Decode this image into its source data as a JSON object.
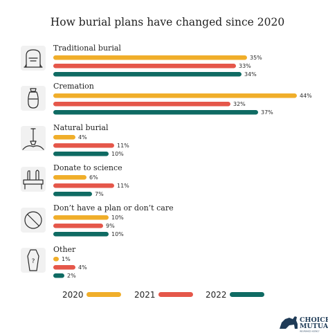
{
  "chart_data": {
    "type": "bar",
    "orientation": "horizontal",
    "title": "How burial plans have changed since 2020",
    "categories": [
      "Traditional burial",
      "Cremation",
      "Natural burial",
      "Donate to science",
      "Don’t have a plan or don’t care",
      "Other"
    ],
    "category_icons": [
      "gravestone-icon",
      "urn-icon",
      "shovel-icon",
      "donate-to-science-icon",
      "no-plan-icon",
      "coffin-icon"
    ],
    "series": [
      {
        "name": "2020",
        "color": "#f0ae2a",
        "values": [
          35,
          44,
          4,
          6,
          10,
          1
        ],
        "labels": [
          "35%",
          "44%",
          "4%",
          "6%",
          "10%",
          "1%"
        ]
      },
      {
        "name": "2021",
        "color": "#e5574a",
        "values": [
          33,
          32,
          11,
          11,
          9,
          4
        ],
        "labels": [
          "33%",
          "32%",
          "11%",
          "11%",
          "9%",
          "4%"
        ]
      },
      {
        "name": "2022",
        "color": "#0f6b63",
        "values": [
          34,
          37,
          10,
          7,
          10,
          2
        ],
        "labels": [
          "34%",
          "37%",
          "10%",
          "7%",
          "10%",
          "2%"
        ]
      }
    ],
    "xlim": [
      0,
      44
    ],
    "grid": false,
    "legend_position": "bottom"
  },
  "logo": {
    "line1": "CHOICE",
    "line2": "MUTUAL",
    "line3": "INSURANCE AGENCY"
  }
}
